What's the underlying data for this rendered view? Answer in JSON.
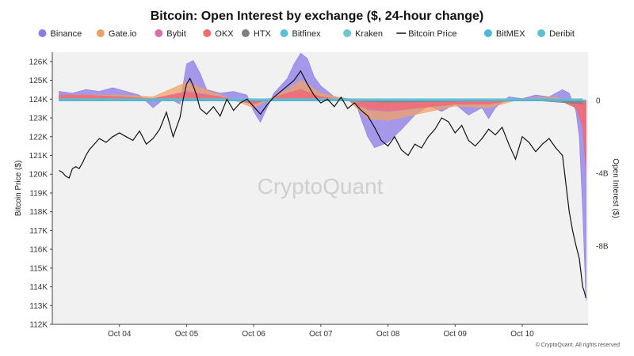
{
  "chart_data": {
    "type": "area",
    "title": "Bitcoin: Open Interest by exchange ($, 24-hour change)",
    "watermark": "CryptoQuant",
    "copyright": "© CryptoQuant. All rights reserved",
    "legend": [
      {
        "name": "Binance",
        "color": "#8b7ae8",
        "marker": "dot"
      },
      {
        "name": "Gate.io",
        "color": "#f0a165",
        "marker": "dot"
      },
      {
        "name": "Bybit",
        "color": "#d96fa6",
        "marker": "dot"
      },
      {
        "name": "OKX",
        "color": "#f06e6e",
        "marker": "dot"
      },
      {
        "name": "HTX",
        "color": "#808080",
        "marker": "dot"
      },
      {
        "name": "Bitfinex",
        "color": "#5bc0d6",
        "marker": "dot"
      },
      {
        "name": "Kraken",
        "color": "#6ec6cc",
        "marker": "dot"
      },
      {
        "name": "Bitcoin Price",
        "color": "#111111",
        "marker": "line"
      },
      {
        "name": "BitMEX",
        "color": "#4fb8d8",
        "marker": "dot"
      },
      {
        "name": "Deribit",
        "color": "#5fc2d2",
        "marker": "dot"
      }
    ],
    "x_axis": {
      "ticks": [
        "Oct 04",
        "Oct 05",
        "Oct 06",
        "Oct 07",
        "Oct 08",
        "Oct 09",
        "Oct 10"
      ],
      "range": [
        3.0,
        10.98
      ]
    },
    "y_left": {
      "label": "Bitcoin Price ($)",
      "range": [
        112,
        126.5
      ],
      "ticks": [
        112,
        113,
        114,
        115,
        116,
        117,
        118,
        119,
        120,
        121,
        122,
        123,
        124,
        125,
        126
      ],
      "tick_labels": [
        "112K",
        "113K",
        "114K",
        "115K",
        "116K",
        "117K",
        "118K",
        "119K",
        "120K",
        "121K",
        "122K",
        "123K",
        "124K",
        "125K",
        "126K"
      ]
    },
    "y_right": {
      "label": "Open Interest ($)",
      "range": [
        -12.3,
        2.65
      ],
      "ticks": [
        0,
        -4,
        -8
      ],
      "tick_labels": [
        "0",
        "-4B",
        "-8B"
      ]
    },
    "grid": false,
    "legend_position": "top-center",
    "price_series": {
      "name": "Bitcoin Price",
      "x": [
        3.1,
        3.15,
        3.2,
        3.25,
        3.3,
        3.35,
        3.4,
        3.45,
        3.5,
        3.55,
        3.6,
        3.7,
        3.8,
        3.9,
        4.0,
        4.1,
        4.2,
        4.3,
        4.4,
        4.5,
        4.6,
        4.7,
        4.8,
        4.9,
        4.95,
        5.0,
        5.05,
        5.1,
        5.15,
        5.2,
        5.3,
        5.4,
        5.5,
        5.6,
        5.7,
        5.8,
        5.9,
        6.0,
        6.1,
        6.2,
        6.3,
        6.4,
        6.5,
        6.6,
        6.7,
        6.8,
        6.9,
        7.0,
        7.1,
        7.2,
        7.3,
        7.4,
        7.5,
        7.6,
        7.7,
        7.8,
        7.9,
        8.0,
        8.1,
        8.2,
        8.3,
        8.4,
        8.5,
        8.6,
        8.7,
        8.8,
        8.9,
        9.0,
        9.1,
        9.2,
        9.3,
        9.4,
        9.5,
        9.6,
        9.7,
        9.8,
        9.9,
        10.0,
        10.1,
        10.2,
        10.3,
        10.4,
        10.5,
        10.6,
        10.7,
        10.75,
        10.8,
        10.85,
        10.9,
        10.92,
        10.95
      ],
      "values": [
        120.2,
        120.1,
        119.9,
        119.8,
        120.3,
        120.4,
        120.3,
        120.6,
        121.0,
        121.3,
        121.5,
        121.9,
        121.7,
        122.0,
        122.2,
        122.0,
        121.8,
        122.3,
        121.6,
        121.9,
        122.4,
        123.3,
        122.0,
        123.0,
        124.0,
        124.8,
        125.1,
        124.7,
        124.2,
        123.5,
        123.2,
        123.6,
        123.1,
        124.0,
        123.4,
        123.8,
        124.0,
        123.6,
        123.2,
        123.7,
        124.1,
        124.4,
        124.7,
        125.0,
        125.5,
        124.8,
        124.2,
        123.8,
        124.0,
        123.6,
        124.1,
        123.5,
        123.8,
        123.4,
        123.1,
        122.5,
        121.8,
        121.5,
        122.0,
        121.3,
        121.0,
        121.6,
        121.4,
        122.0,
        122.4,
        123.0,
        122.8,
        122.2,
        122.6,
        121.8,
        121.5,
        121.9,
        122.4,
        122.1,
        122.5,
        121.6,
        120.8,
        122.0,
        121.7,
        121.2,
        121.6,
        121.9,
        121.4,
        121.0,
        118.0,
        117.0,
        116.2,
        115.5,
        114.0,
        113.8,
        113.4
      ]
    },
    "oi_series": [
      {
        "name": "Binance",
        "color": "#8b7ae8",
        "x": [
          3.1,
          3.3,
          3.5,
          3.7,
          3.9,
          4.1,
          4.3,
          4.5,
          4.7,
          4.9,
          5.0,
          5.1,
          5.2,
          5.3,
          5.5,
          5.7,
          5.9,
          6.0,
          6.1,
          6.3,
          6.5,
          6.6,
          6.7,
          6.8,
          6.9,
          7.0,
          7.2,
          7.4,
          7.5,
          7.6,
          7.7,
          7.8,
          8.0,
          8.2,
          8.4,
          8.6,
          8.8,
          9.0,
          9.2,
          9.4,
          9.5,
          9.6,
          9.8,
          10.0,
          10.2,
          10.4,
          10.6,
          10.7,
          10.8,
          10.85,
          10.9,
          10.95
        ],
        "values": [
          0.5,
          0.4,
          0.6,
          0.5,
          0.7,
          0.5,
          0.3,
          -0.4,
          0.2,
          -0.2,
          2.0,
          2.2,
          1.5,
          0.6,
          0.4,
          0.5,
          0.3,
          -0.6,
          -1.2,
          0.4,
          1.2,
          2.0,
          2.6,
          2.3,
          1.3,
          0.8,
          0.2,
          0.1,
          0.05,
          -1.0,
          -2.0,
          -2.6,
          -2.3,
          -1.6,
          -0.8,
          -0.3,
          -0.6,
          -0.2,
          -0.8,
          -0.4,
          -1.0,
          -0.4,
          0.2,
          0.1,
          0.3,
          0.2,
          0.6,
          0.4,
          -0.6,
          -2.0,
          -6.0,
          -11.0
        ]
      },
      {
        "name": "Gate.io",
        "color": "#f0a165",
        "x": [
          3.1,
          3.5,
          4.0,
          4.5,
          5.0,
          5.5,
          6.0,
          6.5,
          6.7,
          7.0,
          7.4,
          7.7,
          8.0,
          8.5,
          9.0,
          9.5,
          10.0,
          10.5,
          10.8,
          10.9
        ],
        "values": [
          0.2,
          0.3,
          0.3,
          0.2,
          1.0,
          0.3,
          -0.4,
          0.6,
          1.1,
          0.4,
          0.05,
          -1.0,
          -1.1,
          -0.7,
          -0.3,
          -0.4,
          0.1,
          0.2,
          -0.3,
          -1.2
        ]
      },
      {
        "name": "Bybit",
        "color": "#d96fa6",
        "x": [
          3.1,
          3.5,
          4.0,
          4.5,
          5.0,
          5.5,
          6.0,
          6.5,
          6.7,
          7.0,
          7.4,
          7.7,
          8.0,
          8.5,
          9.0,
          9.5,
          10.0,
          10.5,
          10.8,
          10.9,
          10.95
        ],
        "values": [
          0.2,
          0.2,
          0.2,
          0.1,
          0.5,
          0.2,
          -0.2,
          0.4,
          0.6,
          0.2,
          0.0,
          -0.5,
          -0.6,
          -0.4,
          -0.2,
          -0.2,
          0.1,
          0.1,
          -0.4,
          -1.5,
          -4.0
        ]
      },
      {
        "name": "OKX",
        "color": "#f06e6e",
        "x": [
          3.1,
          3.5,
          4.0,
          4.5,
          5.0,
          5.5,
          6.0,
          6.5,
          6.7,
          7.0,
          7.4,
          7.7,
          8.0,
          8.5,
          9.0,
          9.5,
          10.0,
          10.5,
          10.8,
          10.9,
          10.95
        ],
        "values": [
          0.3,
          0.3,
          0.2,
          0.1,
          0.4,
          0.2,
          -0.2,
          0.4,
          0.6,
          0.2,
          0.0,
          -0.4,
          -0.5,
          -0.4,
          -0.2,
          -0.2,
          0.1,
          0.1,
          -0.4,
          -1.3,
          -3.5
        ]
      },
      {
        "name": "HTX",
        "color": "#808080",
        "x": [
          3.1,
          4.0,
          5.0,
          6.0,
          7.0,
          8.0,
          9.0,
          10.0,
          10.9
        ],
        "values": [
          0.05,
          0.05,
          0.1,
          -0.05,
          0.05,
          -0.1,
          -0.05,
          0.05,
          -0.2
        ]
      },
      {
        "name": "Bitfinex",
        "color": "#5bc0d6",
        "x": [
          3.1,
          4.0,
          5.0,
          6.0,
          7.0,
          8.0,
          9.0,
          10.0,
          10.9
        ],
        "values": [
          0.05,
          0.05,
          0.05,
          0.05,
          0.05,
          0.05,
          0.05,
          0.05,
          0.05
        ]
      },
      {
        "name": "Kraken",
        "color": "#6ec6cc",
        "x": [
          3.1,
          4.0,
          5.0,
          6.0,
          7.0,
          8.0,
          9.0,
          10.0,
          10.9
        ],
        "values": [
          0.05,
          0.05,
          0.05,
          0.05,
          0.05,
          0.05,
          0.05,
          0.05,
          0.05
        ]
      },
      {
        "name": "BitMEX",
        "color": "#4fb8d8",
        "x": [
          3.1,
          4.0,
          5.0,
          6.0,
          7.0,
          8.0,
          9.0,
          10.0,
          10.9
        ],
        "values": [
          0.05,
          0.05,
          0.05,
          0.05,
          0.05,
          0.05,
          0.05,
          0.05,
          0.05
        ]
      },
      {
        "name": "Deribit",
        "color": "#5fc2d2",
        "x": [
          3.1,
          4.0,
          5.0,
          6.0,
          7.0,
          8.0,
          9.0,
          10.0,
          10.9
        ],
        "values": [
          0.1,
          0.1,
          0.1,
          0.1,
          0.1,
          0.1,
          0.1,
          0.1,
          0.1
        ]
      }
    ]
  }
}
